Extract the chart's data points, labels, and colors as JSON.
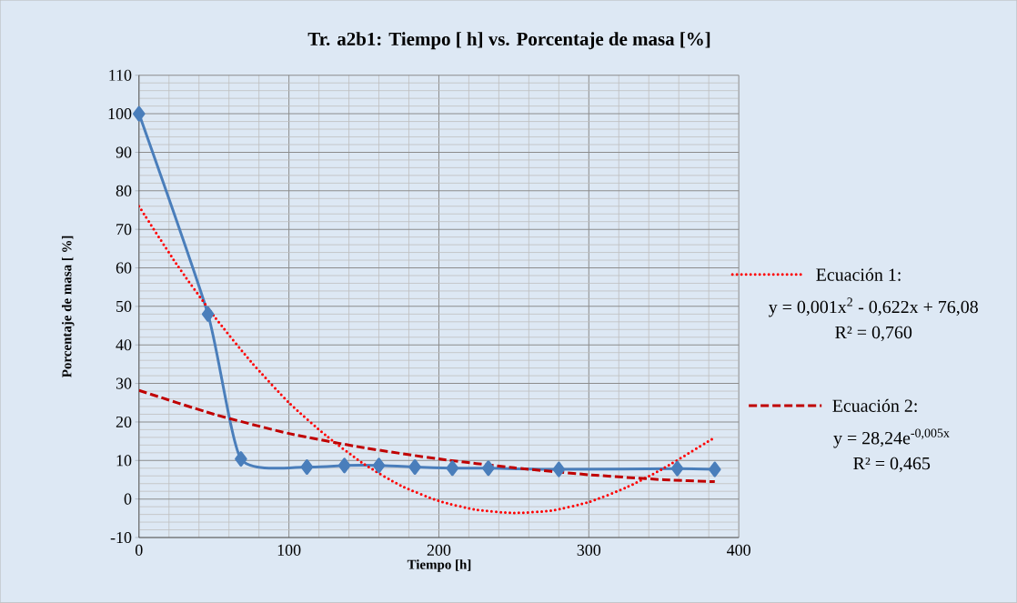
{
  "chart_data": {
    "type": "line",
    "title": "Tr. a2b1: Tiempo [ h] vs. Porcentaje de masa [%]",
    "xlabel": "Tiempo [h]",
    "ylabel": "Porcentaje de masa [ %]",
    "xlim": [
      0,
      400
    ],
    "xticks": [
      0,
      100,
      200,
      300,
      400
    ],
    "ylim": [
      -10,
      110
    ],
    "yticks": [
      -10,
      0,
      10,
      20,
      30,
      40,
      50,
      60,
      70,
      80,
      90,
      100,
      110
    ],
    "grid": true,
    "legend": "right",
    "marker": "diamond",
    "series": [
      {
        "color": "#4a7ebb",
        "line_style": "solid",
        "x": [
          0,
          46,
          68,
          112,
          137,
          160,
          184,
          209,
          233,
          280,
          359,
          384
        ],
        "values": [
          100,
          48,
          10.4,
          8.3,
          8.7,
          8.7,
          8.3,
          8,
          8,
          7.7,
          7.9,
          7.7
        ]
      },
      {
        "name": "Ecuación 1:",
        "color": "#ff0000",
        "line_style": "dotted",
        "marker": "none",
        "x": [
          0,
          25,
          50,
          75,
          100,
          125,
          150,
          175,
          200,
          225,
          250,
          275,
          300,
          325,
          350,
          384
        ],
        "values": [
          76,
          61,
          47.5,
          35.5,
          25,
          16.4,
          9.1,
          3.4,
          -0.5,
          -2.8,
          -3.6,
          -3,
          -0.8,
          3,
          8,
          16
        ]
      },
      {
        "name": "Ecuación 2:",
        "color": "#c00000",
        "line_style": "dashed",
        "marker": "none",
        "x": [
          0,
          50,
          100,
          150,
          200,
          250,
          300,
          350,
          384
        ],
        "values": [
          28.2,
          22,
          17,
          13.3,
          10.4,
          8.1,
          6.3,
          5,
          4.5
        ]
      }
    ],
    "annotations": [
      "y = 0,001x$^{2}$ - 0,622x + 76,08",
      "R² = 0,760",
      "y = 28,24e$^{-0,005x}$",
      "R² = 0,465"
    ]
  }
}
